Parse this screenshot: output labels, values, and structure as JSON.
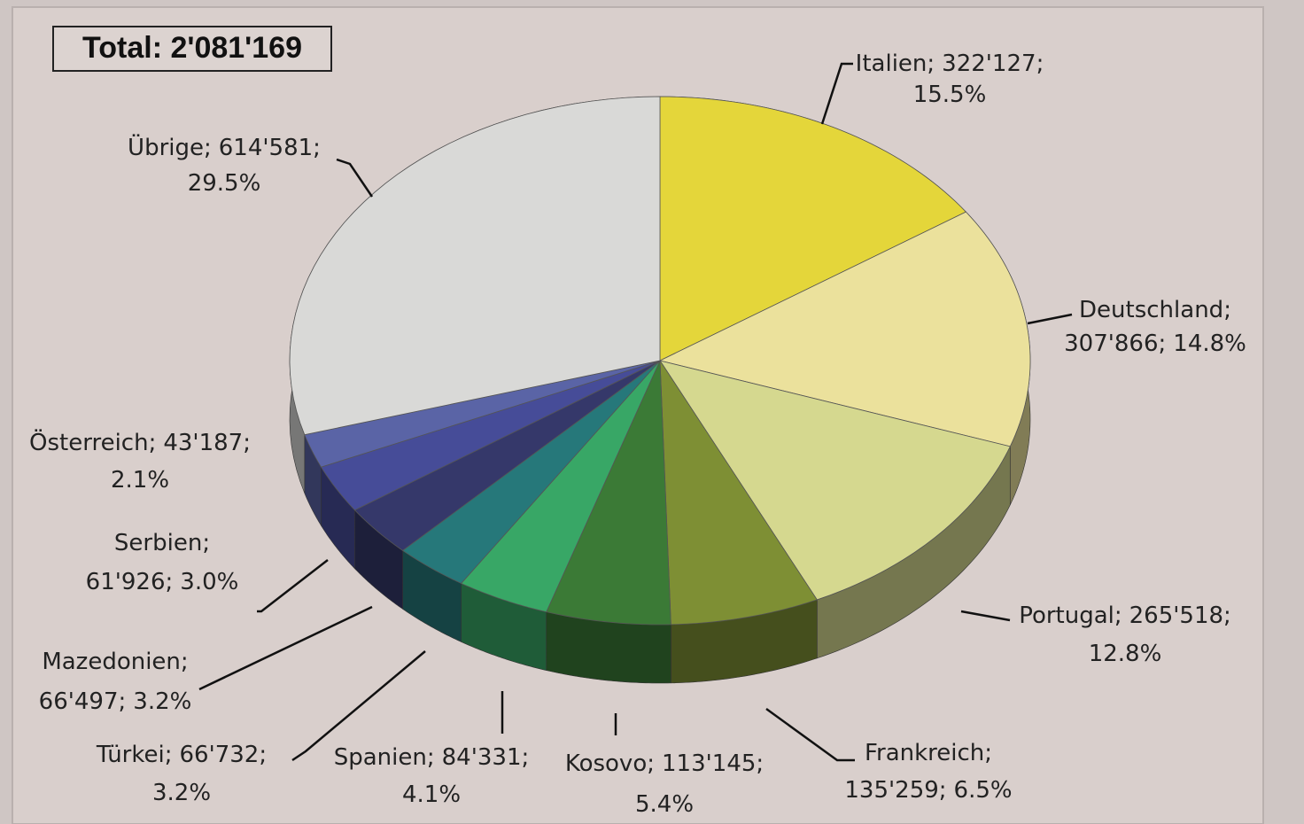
{
  "chart_data": {
    "type": "pie",
    "title": "Total: 2'081'169",
    "label_separator": ";",
    "categories": [
      "Italien",
      "Deutschland",
      "Portugal",
      "Frankreich",
      "Kosovo",
      "Spanien",
      "Türkei",
      "Mazedonien",
      "Serbien",
      "Österreich",
      "Übrige"
    ],
    "values": [
      322127,
      307866,
      265518,
      135259,
      113145,
      84331,
      66732,
      66497,
      61926,
      43187,
      614581
    ],
    "value_labels": [
      "322'127",
      "307'866",
      "265'518",
      "135'259",
      "113'145",
      "84'331",
      "66'732",
      "66'497",
      "61'926",
      "43'187",
      "614'581"
    ],
    "percentages": [
      15.5,
      14.8,
      12.8,
      6.5,
      5.4,
      4.1,
      3.2,
      3.2,
      3.0,
      2.1,
      29.5
    ],
    "percentage_labels": [
      "15.5%",
      "14.8%",
      "12.8%",
      "6.5%",
      "5.4%",
      "4.1%",
      "3.2%",
      "3.2%",
      "3.0%",
      "2.1%",
      "29.5%"
    ],
    "colors": [
      "#e4d63a",
      "#ebe19c",
      "#d5d88f",
      "#7e8f34",
      "#3b7a36",
      "#38a766",
      "#26787a",
      "#35386a",
      "#464c98",
      "#5a64a6",
      "#d9d9d7"
    ]
  }
}
